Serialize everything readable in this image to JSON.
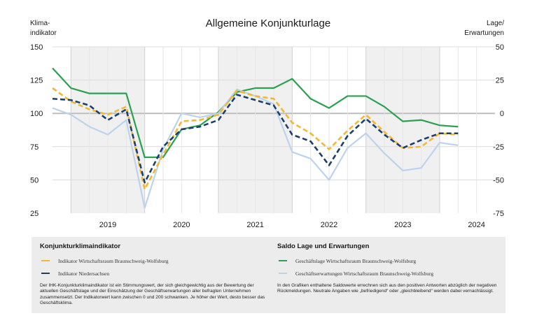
{
  "chart_data": {
    "type": "line",
    "title": "Allgemeine Konjunkturlage",
    "left_axis_label": [
      "Klima-",
      "indikator"
    ],
    "right_axis_label": [
      "Lage/",
      "Erwartungen"
    ],
    "left_ylim": [
      25,
      150
    ],
    "right_ylim": [
      -75,
      50
    ],
    "left_ticks": [
      "150",
      "125",
      "100",
      "75",
      "50",
      "25"
    ],
    "right_ticks": [
      "50",
      "25",
      "0",
      "-25",
      "-50",
      "-75"
    ],
    "x_range": [
      2018.75,
      2024.75
    ],
    "x_tick_labels": [
      "2019",
      "2020",
      "2021",
      "2022",
      "2023",
      "2024"
    ],
    "shaded_years": [
      "2019",
      "2021",
      "2023"
    ],
    "grid": true,
    "x": [
      2018.75,
      2019.0,
      2019.25,
      2019.5,
      2019.75,
      2020.0,
      2020.25,
      2020.5,
      2020.75,
      2021.0,
      2021.25,
      2021.5,
      2021.75,
      2022.0,
      2022.25,
      2022.5,
      2022.75,
      2023.0,
      2023.25,
      2023.5,
      2023.75,
      2024.0,
      2024.25
    ],
    "series": [
      {
        "name": "Geschäftslage Wirtschaftsraum Braunschweig-Wolfsburg",
        "axis": "right",
        "color": "#2aa150",
        "dash": "solid",
        "values": [
          34,
          19,
          15,
          15,
          15,
          -33,
          -33,
          -12,
          -9,
          1,
          16,
          19,
          19,
          26,
          11,
          4,
          13,
          13,
          5,
          -6,
          -5,
          -9,
          -10
        ]
      },
      {
        "name": "Geschäftserwartungen Wirtschaftsraum Braunschweig-Wolfsburg",
        "axis": "right",
        "color": "#bcd3ec",
        "dash": "solid",
        "values": [
          4,
          -1,
          -10,
          -16,
          -5,
          -71,
          -27,
          0,
          -3,
          0,
          18,
          13,
          7,
          -29,
          -34,
          -50,
          -26,
          -15,
          -30,
          -43,
          -41,
          -22,
          -24
        ]
      },
      {
        "name": "Indikator Wirtschaftsraum Braunschweig-Wolfsburg",
        "axis": "left",
        "color": "#f4b734",
        "dash": "dashed",
        "values": [
          119,
          109,
          103,
          99,
          105,
          43,
          69,
          94,
          95,
          99,
          117,
          113,
          111,
          93,
          85,
          73,
          87,
          99,
          86,
          74,
          75,
          85,
          84
        ]
      },
      {
        "name": "Indikator Niedersachsen",
        "axis": "left",
        "color": "#1c3f6e",
        "dash": "dashed",
        "values": [
          111,
          110,
          106,
          95,
          103,
          48,
          75,
          88,
          90,
          95,
          114,
          110,
          106,
          84,
          79,
          61,
          83,
          96,
          84,
          74,
          80,
          85,
          85
        ]
      }
    ]
  },
  "legend": {
    "left_heading": "Konjunkturklimaindikator",
    "left_items": [
      "Indikator Wirtschaftsraum Braunschweig-Wolfsburg",
      "Indikator Niedersachsen"
    ],
    "left_note": "Der IHK-Konjunkturklimaindikator ist ein Stimmungswert, der sich gleichgewichtig aus der Bewertung der aktuellen Geschäftslage und der Einschätzung der Geschäftserwartungen aller befragten Unternehmen zusammensetzt. Der Indikatorwert kann zwischen 0 und 200 schwanken. Je höher der Wert, desto besser das Geschäftsklima.",
    "right_heading": "Saldo Lage und Erwartungen",
    "right_items": [
      "Geschäftslage Wirtschaftsraum Braunschweig-Wolfsburg",
      "Geschäftserwartungen Wirtschaftsraum Braunschweig-Wolfsburg"
    ],
    "right_note": "In den Grafiken enthaltene Saldowerte errechnen sich aus den positiven Antworten abzüglich der negativen Rückmeldungen. Neutrale Angaben wie „befriedigend“ oder „gleichbleibend“ werden dabei vernachlässigt."
  }
}
